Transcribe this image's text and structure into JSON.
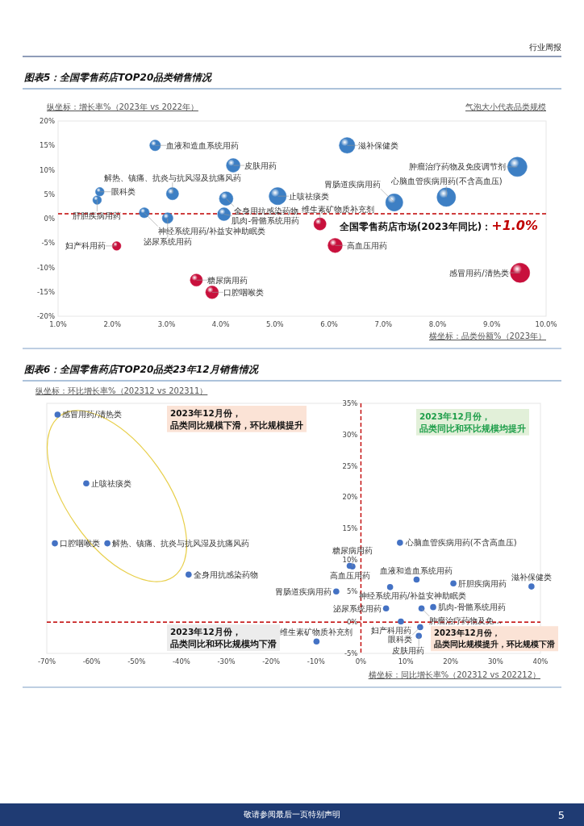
{
  "chart_data": [
    {
      "type": "bubble",
      "title": "图表5：全国零售药店TOP20品类销售情况",
      "xlabel": "横坐标：品类份额%（2023年）",
      "ylabel": "纵坐标：增长率%（2023年 vs 2022年）",
      "marker": "circle",
      "xlim": [
        1,
        10
      ],
      "ylim": [
        -20,
        20
      ],
      "xticks": [
        {
          "value": 1,
          "label": "1.0%"
        },
        {
          "value": 2,
          "label": "2.0%"
        },
        {
          "value": 3,
          "label": "3.0%"
        },
        {
          "value": 4,
          "label": "4.0%"
        },
        {
          "value": 5,
          "label": "5.0%"
        },
        {
          "value": 6,
          "label": "6.0%"
        },
        {
          "value": 7,
          "label": "7.0%"
        },
        {
          "value": 8,
          "label": "8.0%"
        },
        {
          "value": 9,
          "label": "9.0%"
        },
        {
          "value": 10,
          "label": "10.0%"
        }
      ],
      "yticks": [
        {
          "value": -20,
          "label": "-20%"
        },
        {
          "value": -15,
          "label": "-15%"
        },
        {
          "value": -10,
          "label": "-10%"
        },
        {
          "value": -5,
          "label": "-5%"
        },
        {
          "value": 0,
          "label": "0%"
        },
        {
          "value": 5,
          "label": "5%"
        },
        {
          "value": 10,
          "label": "10%"
        },
        {
          "value": 15,
          "label": "15%"
        },
        {
          "value": 20,
          "label": "20%"
        }
      ],
      "series": [
        {
          "x": [
            2.79,
            4.23,
            1.77,
            1.72,
            3.11,
            4.1,
            5.05,
            2.59,
            3.02,
            4.06,
            6.33,
            9.47,
            8.16,
            7.2,
            2.08,
            3.55,
            3.84,
            5.83,
            6.11,
            9.52
          ],
          "values": [
            15.0,
            10.9,
            5.5,
            3.8,
            5.1,
            4.1,
            4.6,
            1.2,
            0.1,
            0.9,
            15.0,
            10.6,
            4.4,
            3.3,
            -5.6,
            -12.6,
            -15.1,
            -1.1,
            -5.5,
            -11.1
          ],
          "sizes": [
            0.31,
            0.5,
            0.2,
            0.2,
            0.4,
            0.5,
            0.79,
            0.27,
            0.31,
            0.44,
            0.66,
            1,
            0.93,
            0.79,
            0.2,
            0.4,
            0.44,
            0.4,
            0.55,
            1
          ],
          "colors": [
            "#3d7fc4",
            "#3d7fc4",
            "#3d7fc4",
            "#3d7fc4",
            "#3d7fc4",
            "#3d7fc4",
            "#3d7fc4",
            "#3d7fc4",
            "#3d7fc4",
            "#3d7fc4",
            "#3d7fc4",
            "#3d7fc4",
            "#3d7fc4",
            "#3d7fc4",
            "#c8103c",
            "#c8103c",
            "#c8103c",
            "#c8103c",
            "#c8103c",
            "#c8103c"
          ]
        }
      ],
      "ref_lines": [
        {
          "axis": "y",
          "value": 1.0,
          "label": "全国零售药店市场(2023年同比)：+1.0%",
          "color": "#c00000",
          "line_style": "dashed"
        }
      ],
      "annotations": [
        "气泡大小代表品类规模",
        "行业周报",
        {
          "text": "血液和造血系统用药",
          "x": 2.79,
          "y": 15.0
        },
        {
          "text": "皮肤用药",
          "x": 4.23,
          "y": 10.9
        },
        {
          "text": "眼科类",
          "x": 1.77,
          "y": 5.5
        },
        {
          "text": "肝胆疾病用药",
          "x": 1.72,
          "y": 3.8
        },
        {
          "text": "解热、镇痛、抗炎与抗风湿及抗痛风药",
          "x": 3.11,
          "y": 5.1
        },
        {
          "text": "全身用抗感染药物",
          "x": 4.1,
          "y": 4.1
        },
        {
          "text": "止咳祛痰类",
          "x": 5.05,
          "y": 4.6
        },
        {
          "text": "神经系统用药/补益安神助眠类",
          "x": 2.59,
          "y": 1.2
        },
        {
          "text": "泌尿系统用药",
          "x": 3.02,
          "y": 0.1
        },
        {
          "text": "肌肉-骨骼系统用药",
          "x": 4.06,
          "y": 0.9
        },
        {
          "text": "滋补保健类",
          "x": 6.33,
          "y": 15.0
        },
        {
          "text": "肿瘤治疗药物及免疫调节剂",
          "x": 9.47,
          "y": 10.6
        },
        {
          "text": "心脑血管疾病用药(不含高血压)",
          "x": 8.16,
          "y": 4.4
        },
        {
          "text": "胃肠道疾病用药",
          "x": 7.2,
          "y": 3.3
        },
        {
          "text": "妇产科用药",
          "x": 2.08,
          "y": -5.6
        },
        {
          "text": "糖尿病用药",
          "x": 3.55,
          "y": -12.6
        },
        {
          "text": "口腔咽喉类",
          "x": 3.84,
          "y": -15.1
        },
        {
          "text": "维生素矿物质补充剂",
          "x": 5.83,
          "y": -1.1
        },
        {
          "text": "高血压用药",
          "x": 6.11,
          "y": -5.5
        },
        {
          "text": "感冒用药/清热类",
          "x": 9.52,
          "y": -11.1
        }
      ]
    },
    {
      "type": "scatter",
      "title": "图表6：全国零售药店TOP20品类23年12月销售情况",
      "xlabel": "横坐标：同比增长率%（202312 vs 202212）",
      "ylabel": "纵坐标：环比增长率%（202312 vs 202311）",
      "marker": "circle",
      "xlim": [
        -70,
        40
      ],
      "ylim": [
        -5,
        35
      ],
      "xticks": [
        {
          "value": -70,
          "label": "-70%"
        },
        {
          "value": -60,
          "label": "-60%"
        },
        {
          "value": -50,
          "label": "-50%"
        },
        {
          "value": -40,
          "label": "-40%"
        },
        {
          "value": -30,
          "label": "-30%"
        },
        {
          "value": -20,
          "label": "-20%"
        },
        {
          "value": -10,
          "label": "-10%"
        },
        {
          "value": 0,
          "label": "0%"
        },
        {
          "value": 10,
          "label": "10%"
        },
        {
          "value": 20,
          "label": "20%"
        },
        {
          "value": 30,
          "label": "30%"
        },
        {
          "value": 40,
          "label": "40%"
        }
      ],
      "yticks": [
        {
          "value": -5,
          "label": "-5%"
        },
        {
          "value": 0,
          "label": "0%"
        },
        {
          "value": 5,
          "label": "5%"
        },
        {
          "value": 10,
          "label": "10%"
        },
        {
          "value": 15,
          "label": "15%"
        },
        {
          "value": 20,
          "label": "20%"
        },
        {
          "value": 25,
          "label": "25%"
        },
        {
          "value": 30,
          "label": "30%"
        },
        {
          "value": 35,
          "label": "35%"
        }
      ],
      "series": [
        {
          "color": "#4472c4",
          "x": [
            -67.6,
            -61.2,
            -68.2,
            -56.5,
            -38.4,
            8.7,
            -2.5,
            -1.9,
            6.5,
            12.4,
            20.6,
            38.0,
            -5.5,
            13.5,
            16.1,
            5.6,
            8.9,
            13.2,
            12.9,
            -9.9
          ],
          "values": [
            33.2,
            22.2,
            12.6,
            12.6,
            7.6,
            12.7,
            9.0,
            8.9,
            5.6,
            6.8,
            6.2,
            5.7,
            4.9,
            2.2,
            2.4,
            2.2,
            0.1,
            -0.8,
            -2.2,
            -3.1
          ]
        }
      ],
      "ref_lines": [
        {
          "axis": "x",
          "value": 0,
          "color": "#c00000",
          "line_style": "dashed"
        },
        {
          "axis": "y",
          "value": 0,
          "color": "#c00000",
          "line_style": "dashed"
        }
      ],
      "annotations": [
        "2023年12月份，品类同比规模下滑，环比规模提升",
        "2023年12月份，品类同比和环比规模均提升",
        "2023年12月份，品类同比和环比规模均下滑",
        "2023年12月份，品类同比规模提升，环比规模下滑",
        "敬请参阅最后一页特别声明",
        "5",
        {
          "text": "感冒用药/清热类",
          "x": -67.6,
          "y": 33.2
        },
        {
          "text": "止咳祛痰类",
          "x": -61.2,
          "y": 22.2
        },
        {
          "text": "口腔咽喉类",
          "x": -68.2,
          "y": 12.6
        },
        {
          "text": "解热、镇痛、抗炎与抗风湿及抗痛风药",
          "x": -56.5,
          "y": 12.6
        },
        {
          "text": "全身用抗感染药物",
          "x": -38.4,
          "y": 7.6
        },
        {
          "text": "心脑血管疾病用药(不含高血压)",
          "x": 8.7,
          "y": 12.7
        },
        {
          "text": "高血压用药",
          "x": -2.5,
          "y": 9.0
        },
        {
          "text": "糖尿病用药",
          "x": -1.9,
          "y": 8.9
        },
        {
          "text": "神经系统用药/补益安神助眠类",
          "x": 6.5,
          "y": 5.6
        },
        {
          "text": "血液和造血系统用药",
          "x": 12.4,
          "y": 6.8
        },
        {
          "text": "肝胆疾病用药",
          "x": 20.6,
          "y": 6.2
        },
        {
          "text": "滋补保健类",
          "x": 38.0,
          "y": 5.7
        },
        {
          "text": "胃肠道疾病用药",
          "x": -5.5,
          "y": 4.9
        },
        {
          "text": "肿瘤治疗药物及免...",
          "x": 13.5,
          "y": 2.2
        },
        {
          "text": "肌肉-骨骼系统用药",
          "x": 16.1,
          "y": 2.4
        },
        {
          "text": "泌尿系统用药",
          "x": 5.6,
          "y": 2.2
        },
        {
          "text": "妇产科用药",
          "x": 8.9,
          "y": 0.1
        },
        {
          "text": "眼科类",
          "x": 13.2,
          "y": -0.8
        },
        {
          "text": "皮肤用药",
          "x": 12.9,
          "y": -2.2
        },
        {
          "text": "维生素矿物质补充剂",
          "x": -9.9,
          "y": -3.1
        }
      ]
    }
  ]
}
